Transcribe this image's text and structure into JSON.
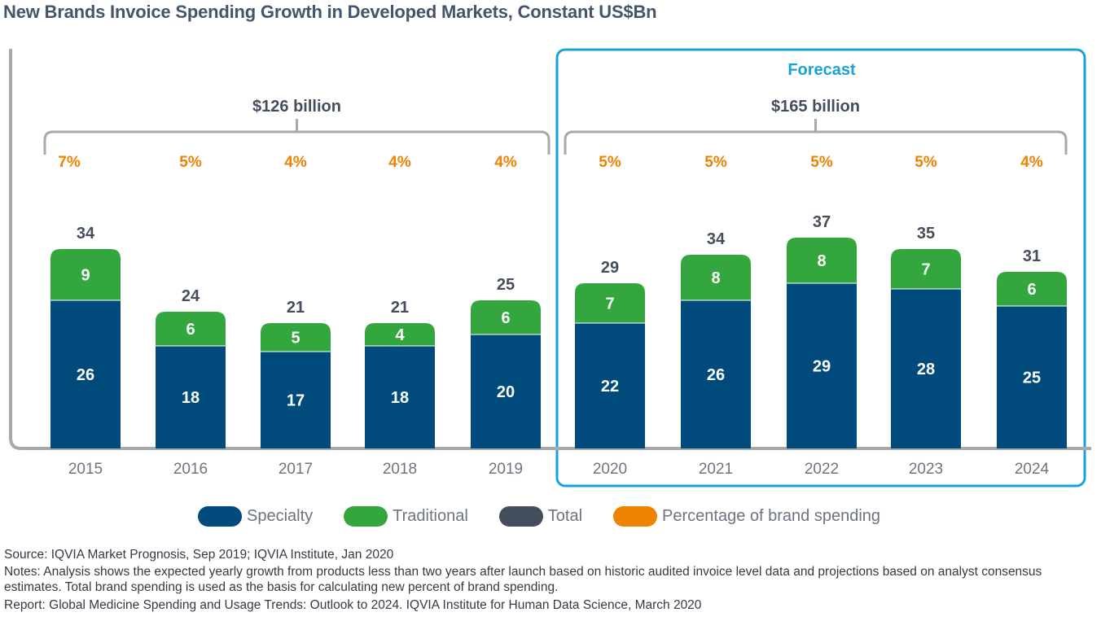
{
  "title": "New Brands Invoice Spending Growth in Developed Markets, Constant US$Bn",
  "chart_data": {
    "type": "bar",
    "stacked": true,
    "categories": [
      "2015",
      "2016",
      "2017",
      "2018",
      "2019",
      "2020",
      "2021",
      "2022",
      "2023",
      "2024"
    ],
    "series": [
      {
        "name": "Specialty",
        "color": "#004b7c",
        "values": [
          26,
          18,
          17,
          18,
          20,
          22,
          26,
          29,
          28,
          25
        ]
      },
      {
        "name": "Traditional",
        "color": "#33a73d",
        "values": [
          9,
          6,
          5,
          4,
          6,
          7,
          8,
          8,
          7,
          6
        ]
      }
    ],
    "totals": {
      "name": "Total",
      "color": "#454e5c",
      "values": [
        34,
        24,
        21,
        21,
        25,
        29,
        34,
        37,
        35,
        31
      ]
    },
    "growth": {
      "name": "Percentage of brand spending",
      "color": "#ef8200",
      "values": [
        "7%",
        "5%",
        "4%",
        "4%",
        "4%",
        "5%",
        "5%",
        "5%",
        "5%",
        "4%"
      ]
    },
    "brackets": [
      {
        "label": "$126 billion",
        "from": "2015",
        "to": "2019"
      },
      {
        "label": "$165 billion",
        "from": "2020",
        "to": "2024"
      }
    ],
    "forecast_label": "Forecast",
    "forecast_color": "#1aa1dc",
    "ylim": [
      0,
      40
    ],
    "xlabel": "",
    "ylabel": "",
    "legend": [
      "Specialty",
      "Traditional",
      "Total",
      "Percentage of brand spending"
    ]
  },
  "legend": [
    {
      "label": "Specialty",
      "color": "#004b7c"
    },
    {
      "label": "Traditional",
      "color": "#33a73d"
    },
    {
      "label": "Total",
      "color": "#454e5c"
    },
    {
      "label": "Percentage of brand spending",
      "color": "#ef8200"
    }
  ],
  "footer": {
    "source": "Source: IQVIA Market Prognosis, Sep 2019; IQVIA Institute, Jan 2020",
    "notes": "Notes: Analysis shows the expected yearly growth from products less than two years after launch based on historic audited invoice level data and projections based on analyst consensus estimates. Total brand spending is used as the basis for calculating new percent of brand spending.",
    "report": "Report: Global Medicine Spending and Usage Trends: Outlook to 2024. IQVIA Institute for Human Data Science, March 2020"
  }
}
